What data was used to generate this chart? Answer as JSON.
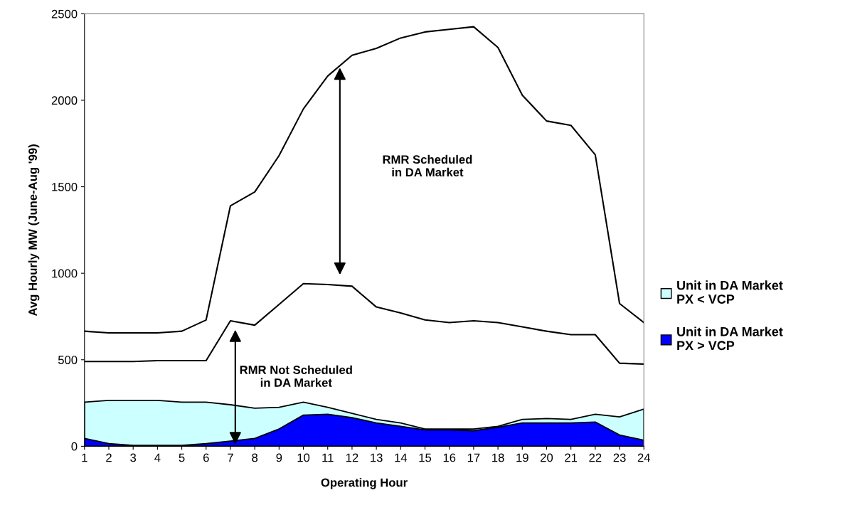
{
  "chart_data": {
    "type": "area",
    "xlabel": "Operating Hour",
    "ylabel": "Avg Hourly MW (June-Aug '99)",
    "categories": [
      "1",
      "2",
      "3",
      "4",
      "5",
      "6",
      "7",
      "8",
      "9",
      "10",
      "11",
      "12",
      "13",
      "14",
      "15",
      "16",
      "17",
      "18",
      "19",
      "20",
      "21",
      "22",
      "23",
      "24"
    ],
    "series": [
      {
        "name": "Unit in DA Market\nPX < VCP",
        "color": "#ccffff",
        "values": [
          255,
          265,
          265,
          265,
          255,
          255,
          240,
          220,
          225,
          255,
          225,
          190,
          155,
          135,
          100,
          100,
          100,
          115,
          155,
          160,
          155,
          185,
          170,
          215
        ]
      },
      {
        "name": "Unit in DA Market\nPX > VCP",
        "color": "#0000ff",
        "values": [
          45,
          15,
          5,
          5,
          5,
          15,
          30,
          45,
          100,
          180,
          185,
          165,
          135,
          115,
          95,
          95,
          90,
          110,
          135,
          135,
          135,
          140,
          65,
          35
        ]
      },
      {
        "type": "line",
        "color": "#000000",
        "values": [
          490,
          490,
          490,
          495,
          495,
          495,
          725,
          700,
          820,
          940,
          935,
          925,
          805,
          770,
          730,
          715,
          725,
          715,
          690,
          665,
          645,
          645,
          480,
          475
        ]
      },
      {
        "type": "line",
        "color": "#000000",
        "values": [
          665,
          655,
          655,
          655,
          665,
          730,
          1390,
          1470,
          1680,
          1950,
          2140,
          2260,
          2300,
          2360,
          2395,
          2410,
          2425,
          2305,
          2030,
          1880,
          1855,
          1685,
          825,
          715
        ]
      }
    ],
    "annotations": [
      "RMR Not Scheduled\nin DA Market",
      "RMR Scheduled\nin DA Market"
    ],
    "ylim": [
      0,
      2500
    ],
    "yticks": [
      0,
      500,
      1000,
      1500,
      2000,
      2500
    ],
    "legend": "right",
    "grid": false
  }
}
